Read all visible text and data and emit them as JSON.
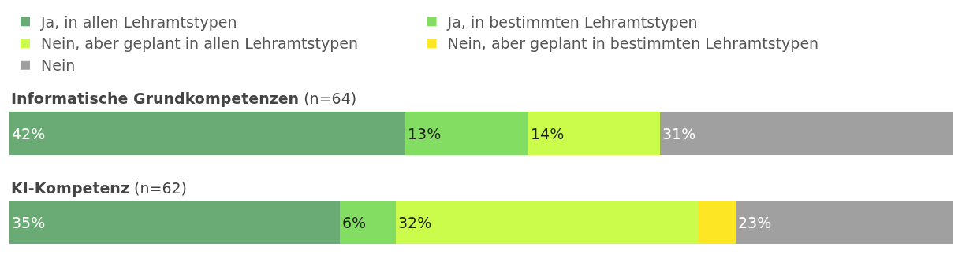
{
  "chart_data": {
    "type": "bar",
    "orientation": "horizontal",
    "stacked": true,
    "categories": [
      "Informatische Grundkompetenzen (n=64)",
      "KI-Kompetenz (n=62)"
    ],
    "xlim": [
      0,
      100
    ],
    "tick_labels": false,
    "legend": "top",
    "series": [
      {
        "name": "Ja, in allen Lehramtstypen",
        "color": "#6aaa74",
        "values": [
          42,
          35
        ],
        "value_labels": [
          "42%",
          "35%"
        ]
      },
      {
        "name": "Ja, in bestimmten Lehramtstypen",
        "color": "#84dd63",
        "values": [
          13,
          6
        ],
        "value_labels": [
          "13%",
          "6%"
        ]
      },
      {
        "name": "Nein, aber geplant in allen Lehramtstypen",
        "color": "#cbfb4b",
        "values": [
          14,
          32
        ],
        "value_labels": [
          "14%",
          "32%"
        ]
      },
      {
        "name": "Nein, aber geplant in bestimmten Lehramtstypen",
        "color": "#fde725",
        "values": [
          0,
          4
        ],
        "value_labels": [
          null,
          null
        ]
      },
      {
        "name": "Nein",
        "color": "#a0a0a0",
        "values": [
          31,
          23
        ],
        "value_labels": [
          "31%",
          "23%"
        ]
      }
    ]
  }
}
